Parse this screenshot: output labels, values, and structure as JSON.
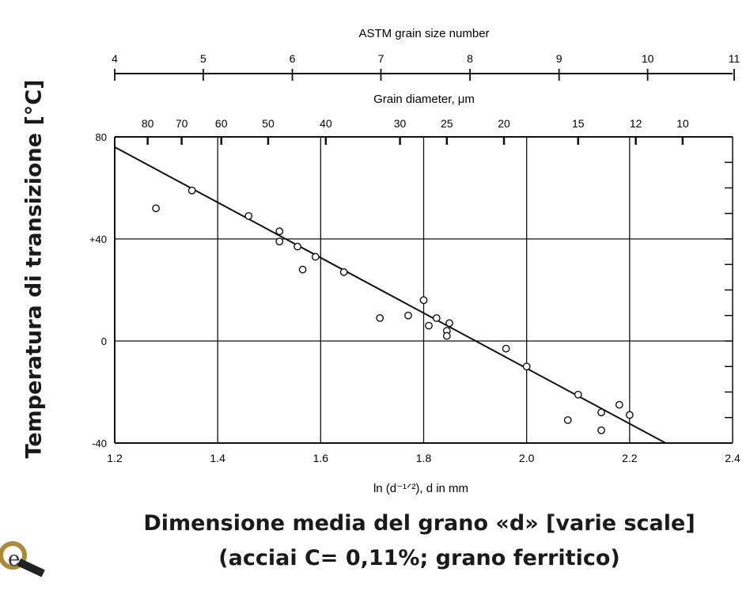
{
  "chart_data": {
    "type": "scatter",
    "title": "",
    "xlabel": "ln (d⁻¹ᐟ²), d in mm",
    "ylabel": "Temperatura di transizione [°C]",
    "xlim": [
      1.2,
      2.4
    ],
    "ylim": [
      -40,
      80
    ],
    "x_ticks": [
      1.2,
      1.4,
      1.6,
      1.8,
      2.0,
      2.2,
      2.4
    ],
    "x_tick_labels": [
      "1.2",
      "1.4",
      "1.6",
      "1.8",
      "2.0",
      "2.2",
      "2.4"
    ],
    "y_ticks": [
      -40,
      0,
      40,
      80
    ],
    "y_tick_labels": [
      "-40",
      "0",
      "+40",
      "80"
    ],
    "grid": true,
    "series": [
      {
        "points": [
          {
            "x": 1.28,
            "y": 52
          },
          {
            "x": 1.35,
            "y": 59
          },
          {
            "x": 1.46,
            "y": 49
          },
          {
            "x": 1.52,
            "y": 43
          },
          {
            "x": 1.52,
            "y": 39
          },
          {
            "x": 1.555,
            "y": 37
          },
          {
            "x": 1.565,
            "y": 28
          },
          {
            "x": 1.59,
            "y": 33
          },
          {
            "x": 1.645,
            "y": 27
          },
          {
            "x": 1.715,
            "y": 9
          },
          {
            "x": 1.77,
            "y": 10
          },
          {
            "x": 1.8,
            "y": 16
          },
          {
            "x": 1.81,
            "y": 6
          },
          {
            "x": 1.825,
            "y": 9
          },
          {
            "x": 1.845,
            "y": 4
          },
          {
            "x": 1.845,
            "y": 2
          },
          {
            "x": 1.85,
            "y": 7
          },
          {
            "x": 1.96,
            "y": -3
          },
          {
            "x": 2.0,
            "y": -10
          },
          {
            "x": 2.08,
            "y": -31
          },
          {
            "x": 2.1,
            "y": -21
          },
          {
            "x": 2.145,
            "y": -28
          },
          {
            "x": 2.145,
            "y": -35
          },
          {
            "x": 2.18,
            "y": -25
          },
          {
            "x": 2.2,
            "y": -29
          }
        ]
      },
      {
        "type": "line",
        "points": [
          {
            "x": 1.2,
            "y": 76
          },
          {
            "x": 2.27,
            "y": -40
          }
        ]
      }
    ],
    "top_axes": [
      {
        "label": "ASTM grain size number",
        "ticks": [
          {
            "label": "4",
            "x": 1.2
          },
          {
            "label": "5",
            "x": 1.372
          },
          {
            "label": "6",
            "x": 1.545
          },
          {
            "label": "7",
            "x": 1.717
          },
          {
            "label": "8",
            "x": 1.89
          },
          {
            "label": "9",
            "x": 2.063
          },
          {
            "label": "10",
            "x": 2.235
          },
          {
            "label": "11",
            "x": 2.408
          }
        ]
      },
      {
        "label": "Grain diameter, μm",
        "ticks": [
          {
            "label": "80",
            "x": 1.264
          },
          {
            "label": "70",
            "x": 1.33
          },
          {
            "label": "60",
            "x": 1.407
          },
          {
            "label": "50",
            "x": 1.498
          },
          {
            "label": "40",
            "x": 1.61
          },
          {
            "label": "30",
            "x": 1.754
          },
          {
            "label": "25",
            "x": 1.845
          },
          {
            "label": "20",
            "x": 1.956
          },
          {
            "label": "15",
            "x": 2.1
          },
          {
            "label": "12",
            "x": 2.212
          },
          {
            "label": "10",
            "x": 2.303
          }
        ]
      }
    ]
  },
  "caption": {
    "line1": "Dimensione media del grano «d» [varie scale]",
    "line2": "(acciai C= 0,11%; grano ferritico)"
  }
}
